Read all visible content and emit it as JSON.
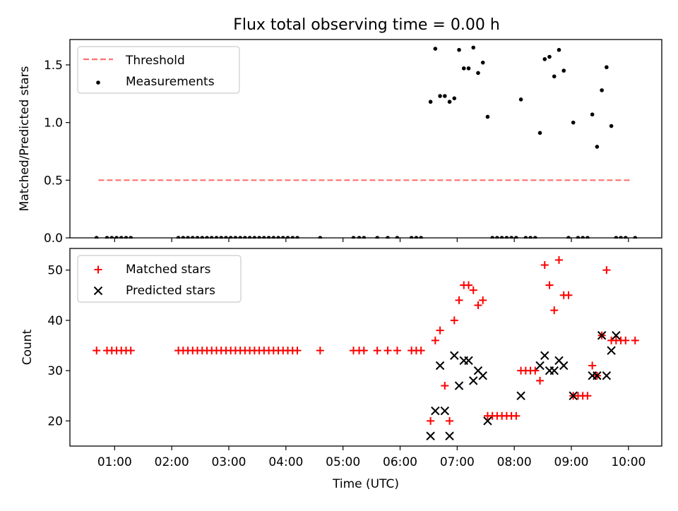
{
  "title": "Flux total observing time = 0.00 h",
  "colors": {
    "threshold": "#ff7070",
    "measurement": "#000000",
    "matched": "#ff0000",
    "predicted": "#000000"
  },
  "chart_data": [
    {
      "type": "scatter",
      "ylabel": "Matched/Predicted stars",
      "xlabel": "",
      "ylim": [
        0,
        1.72
      ],
      "xlim": [
        "00:13",
        "10:35"
      ],
      "yticks": [
        "0.0",
        "0.5",
        "1.0",
        "1.5"
      ],
      "legend": {
        "placement": "top-left",
        "entries": [
          "Threshold",
          "Measurements"
        ]
      },
      "threshold": {
        "name": "Threshold",
        "y": 0.5,
        "x_start": "00:43",
        "x_end": "10:04",
        "style": "dashed"
      },
      "series": [
        {
          "name": "Measurements",
          "marker": "dot",
          "points": [
            [
              "00:41",
              0
            ],
            [
              "00:52",
              0
            ],
            [
              "00:57",
              0
            ],
            [
              "01:02",
              0
            ],
            [
              "01:07",
              0
            ],
            [
              "01:12",
              0
            ],
            [
              "01:17",
              0
            ],
            [
              "02:07",
              0
            ],
            [
              "02:12",
              0
            ],
            [
              "02:17",
              0
            ],
            [
              "02:22",
              0
            ],
            [
              "02:27",
              0
            ],
            [
              "02:32",
              0
            ],
            [
              "02:37",
              0
            ],
            [
              "02:42",
              0
            ],
            [
              "02:47",
              0
            ],
            [
              "02:52",
              0
            ],
            [
              "02:57",
              0
            ],
            [
              "03:02",
              0
            ],
            [
              "03:07",
              0
            ],
            [
              "03:12",
              0
            ],
            [
              "03:17",
              0
            ],
            [
              "03:22",
              0
            ],
            [
              "03:27",
              0
            ],
            [
              "03:32",
              0
            ],
            [
              "03:37",
              0
            ],
            [
              "03:42",
              0
            ],
            [
              "03:47",
              0
            ],
            [
              "03:52",
              0
            ],
            [
              "03:57",
              0
            ],
            [
              "04:02",
              0
            ],
            [
              "04:07",
              0
            ],
            [
              "04:12",
              0
            ],
            [
              "04:36",
              0
            ],
            [
              "05:11",
              0
            ],
            [
              "05:17",
              0
            ],
            [
              "05:22",
              0
            ],
            [
              "05:36",
              0
            ],
            [
              "05:47",
              0
            ],
            [
              "05:57",
              0
            ],
            [
              "06:12",
              0
            ],
            [
              "06:17",
              0
            ],
            [
              "06:22",
              0
            ],
            [
              "06:32",
              1.18
            ],
            [
              "06:37",
              1.64
            ],
            [
              "06:42",
              1.23
            ],
            [
              "06:47",
              1.23
            ],
            [
              "06:52",
              1.18
            ],
            [
              "06:57",
              1.21
            ],
            [
              "07:02",
              1.63
            ],
            [
              "07:07",
              1.47
            ],
            [
              "07:12",
              1.47
            ],
            [
              "07:17",
              1.65
            ],
            [
              "07:22",
              1.43
            ],
            [
              "07:27",
              1.52
            ],
            [
              "07:32",
              1.05
            ],
            [
              "07:37",
              0
            ],
            [
              "07:42",
              0
            ],
            [
              "07:47",
              0
            ],
            [
              "07:52",
              0
            ],
            [
              "07:57",
              0
            ],
            [
              "08:02",
              0
            ],
            [
              "08:07",
              1.2
            ],
            [
              "08:12",
              0
            ],
            [
              "08:17",
              0
            ],
            [
              "08:22",
              0
            ],
            [
              "08:27",
              0.91
            ],
            [
              "08:32",
              1.55
            ],
            [
              "08:37",
              1.57
            ],
            [
              "08:42",
              1.4
            ],
            [
              "08:47",
              1.63
            ],
            [
              "08:52",
              1.45
            ],
            [
              "08:57",
              0
            ],
            [
              "09:02",
              1.0
            ],
            [
              "09:07",
              0
            ],
            [
              "09:12",
              0
            ],
            [
              "09:17",
              0
            ],
            [
              "09:22",
              1.07
            ],
            [
              "09:27",
              0.79
            ],
            [
              "09:32",
              1.28
            ],
            [
              "09:37",
              1.48
            ],
            [
              "09:42",
              0.97
            ],
            [
              "09:47",
              0
            ],
            [
              "09:52",
              0
            ],
            [
              "09:57",
              0
            ],
            [
              "10:07",
              0
            ]
          ]
        }
      ]
    },
    {
      "type": "scatter",
      "ylabel": "Count",
      "xlabel": "Time (UTC)",
      "ylim": [
        15,
        54.3
      ],
      "xlim": [
        "00:13",
        "10:35"
      ],
      "yticks": [
        "20",
        "30",
        "40",
        "50"
      ],
      "xticks": [
        "01:00",
        "02:00",
        "03:00",
        "04:00",
        "05:00",
        "06:00",
        "07:00",
        "08:00",
        "09:00",
        "10:00"
      ],
      "legend": {
        "placement": "top-left",
        "entries": [
          "Matched stars",
          "Predicted stars"
        ]
      },
      "series": [
        {
          "name": "Matched stars",
          "marker": "plus",
          "points": [
            [
              "00:41",
              34
            ],
            [
              "00:52",
              34
            ],
            [
              "00:57",
              34
            ],
            [
              "01:02",
              34
            ],
            [
              "01:07",
              34
            ],
            [
              "01:12",
              34
            ],
            [
              "01:17",
              34
            ],
            [
              "02:07",
              34
            ],
            [
              "02:12",
              34
            ],
            [
              "02:17",
              34
            ],
            [
              "02:22",
              34
            ],
            [
              "02:27",
              34
            ],
            [
              "02:32",
              34
            ],
            [
              "02:37",
              34
            ],
            [
              "02:42",
              34
            ],
            [
              "02:47",
              34
            ],
            [
              "02:52",
              34
            ],
            [
              "02:57",
              34
            ],
            [
              "03:02",
              34
            ],
            [
              "03:07",
              34
            ],
            [
              "03:12",
              34
            ],
            [
              "03:17",
              34
            ],
            [
              "03:22",
              34
            ],
            [
              "03:27",
              34
            ],
            [
              "03:32",
              34
            ],
            [
              "03:37",
              34
            ],
            [
              "03:42",
              34
            ],
            [
              "03:47",
              34
            ],
            [
              "03:52",
              34
            ],
            [
              "03:57",
              34
            ],
            [
              "04:02",
              34
            ],
            [
              "04:07",
              34
            ],
            [
              "04:12",
              34
            ],
            [
              "04:36",
              34
            ],
            [
              "05:11",
              34
            ],
            [
              "05:17",
              34
            ],
            [
              "05:22",
              34
            ],
            [
              "05:36",
              34
            ],
            [
              "05:47",
              34
            ],
            [
              "05:57",
              34
            ],
            [
              "06:12",
              34
            ],
            [
              "06:17",
              34
            ],
            [
              "06:22",
              34
            ],
            [
              "06:32",
              20
            ],
            [
              "06:37",
              36
            ],
            [
              "06:42",
              38
            ],
            [
              "06:47",
              27
            ],
            [
              "06:52",
              20
            ],
            [
              "06:57",
              40
            ],
            [
              "07:02",
              44
            ],
            [
              "07:07",
              47
            ],
            [
              "07:12",
              47
            ],
            [
              "07:17",
              46
            ],
            [
              "07:22",
              43
            ],
            [
              "07:27",
              44
            ],
            [
              "07:32",
              21
            ],
            [
              "07:37",
              21
            ],
            [
              "07:42",
              21
            ],
            [
              "07:47",
              21
            ],
            [
              "07:52",
              21
            ],
            [
              "07:57",
              21
            ],
            [
              "08:02",
              21
            ],
            [
              "08:07",
              30
            ],
            [
              "08:12",
              30
            ],
            [
              "08:17",
              30
            ],
            [
              "08:22",
              30
            ],
            [
              "08:27",
              28
            ],
            [
              "08:32",
              51
            ],
            [
              "08:37",
              47
            ],
            [
              "08:42",
              42
            ],
            [
              "08:47",
              52
            ],
            [
              "08:52",
              45
            ],
            [
              "08:57",
              45
            ],
            [
              "09:02",
              25
            ],
            [
              "09:07",
              25
            ],
            [
              "09:12",
              25
            ],
            [
              "09:17",
              25
            ],
            [
              "09:22",
              31
            ],
            [
              "09:27",
              29
            ],
            [
              "09:32",
              37
            ],
            [
              "09:37",
              50
            ],
            [
              "09:42",
              36
            ],
            [
              "09:47",
              36
            ],
            [
              "09:52",
              36
            ],
            [
              "09:57",
              36
            ],
            [
              "10:07",
              36
            ]
          ]
        },
        {
          "name": "Predicted stars",
          "marker": "x",
          "points": [
            [
              "06:32",
              17
            ],
            [
              "06:37",
              22
            ],
            [
              "06:42",
              31
            ],
            [
              "06:47",
              22
            ],
            [
              "06:52",
              17
            ],
            [
              "06:57",
              33
            ],
            [
              "07:02",
              27
            ],
            [
              "07:07",
              32
            ],
            [
              "07:12",
              32
            ],
            [
              "07:17",
              28
            ],
            [
              "07:22",
              30
            ],
            [
              "07:27",
              29
            ],
            [
              "07:32",
              20
            ],
            [
              "08:07",
              25
            ],
            [
              "08:27",
              31
            ],
            [
              "08:32",
              33
            ],
            [
              "08:37",
              30
            ],
            [
              "08:42",
              30
            ],
            [
              "08:47",
              32
            ],
            [
              "08:52",
              31
            ],
            [
              "09:02",
              25
            ],
            [
              "09:22",
              29
            ],
            [
              "09:27",
              29
            ],
            [
              "09:32",
              37
            ],
            [
              "09:37",
              29
            ],
            [
              "09:42",
              34
            ],
            [
              "09:47",
              37
            ]
          ]
        }
      ]
    }
  ]
}
